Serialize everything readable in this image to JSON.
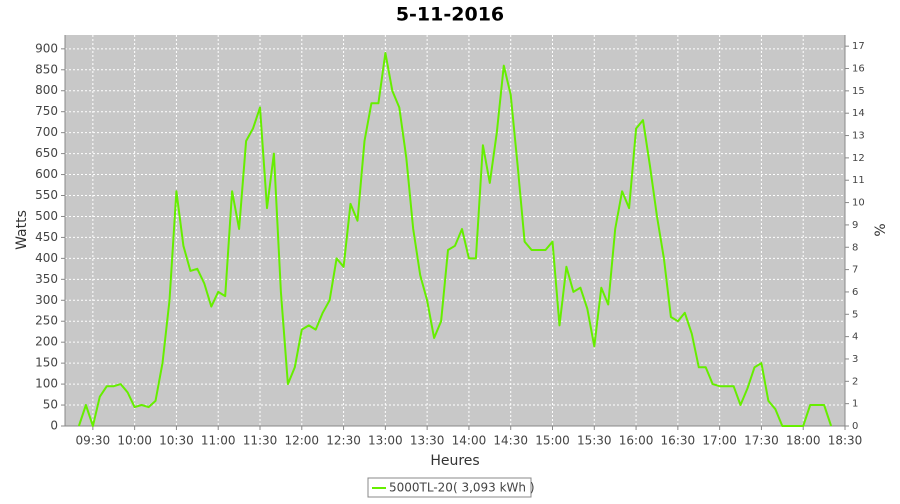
{
  "chart_data": {
    "type": "line",
    "title": "5-11-2016",
    "x_label": "Heures",
    "y_label": "Watts",
    "y2_label": "%",
    "xlim": [
      "09:10",
      "18:30"
    ],
    "xticks": [
      "09:30",
      "10:00",
      "10:30",
      "11:00",
      "11:30",
      "12:00",
      "12:30",
      "13:00",
      "13:30",
      "14:00",
      "14:30",
      "15:00",
      "15:30",
      "16:00",
      "16:30",
      "17:00",
      "17:30",
      "18:00",
      "18:30"
    ],
    "ylim": [
      0,
      933
    ],
    "yticks": [
      0,
      50,
      100,
      150,
      200,
      250,
      300,
      350,
      400,
      450,
      500,
      550,
      600,
      650,
      700,
      750,
      800,
      850,
      900
    ],
    "y2lim": [
      0,
      17.5
    ],
    "y2ticks": [
      0,
      1,
      2,
      3,
      4,
      5,
      6,
      7,
      8,
      9,
      10,
      11,
      12,
      13,
      14,
      15,
      16,
      17
    ],
    "grid": true,
    "legend": "bottom",
    "x": [
      "09:20",
      "09:25",
      "09:30",
      "09:35",
      "09:40",
      "09:45",
      "09:50",
      "09:55",
      "10:00",
      "10:05",
      "10:10",
      "10:15",
      "10:20",
      "10:25",
      "10:30",
      "10:35",
      "10:40",
      "10:45",
      "10:50",
      "10:55",
      "11:00",
      "11:05",
      "11:10",
      "11:15",
      "11:20",
      "11:25",
      "11:30",
      "11:35",
      "11:40",
      "11:45",
      "11:50",
      "11:55",
      "12:00",
      "12:05",
      "12:10",
      "12:15",
      "12:20",
      "12:25",
      "12:30",
      "12:35",
      "12:40",
      "12:45",
      "12:50",
      "12:55",
      "13:00",
      "13:05",
      "13:10",
      "13:15",
      "13:20",
      "13:25",
      "13:30",
      "13:35",
      "13:40",
      "13:45",
      "13:50",
      "13:55",
      "14:00",
      "14:05",
      "14:10",
      "14:15",
      "14:20",
      "14:25",
      "14:30",
      "14:35",
      "14:40",
      "14:45",
      "14:50",
      "14:55",
      "15:00",
      "15:05",
      "15:10",
      "15:15",
      "15:20",
      "15:25",
      "15:30",
      "15:35",
      "15:40",
      "15:45",
      "15:50",
      "15:55",
      "16:00",
      "16:05",
      "16:10",
      "16:15",
      "16:20",
      "16:25",
      "16:30",
      "16:35",
      "16:40",
      "16:45",
      "16:50",
      "16:55",
      "17:00",
      "17:05",
      "17:10",
      "17:15",
      "17:20",
      "17:25",
      "17:30",
      "17:35",
      "17:40",
      "17:45",
      "17:50",
      "17:55",
      "18:00",
      "18:05",
      "18:10",
      "18:15",
      "18:20"
    ],
    "series": [
      {
        "name": "5000TL-20( 3,093 kWh )",
        "color": "#66ee00",
        "values": [
          0,
          50,
          0,
          70,
          95,
          95,
          100,
          80,
          45,
          50,
          45,
          60,
          150,
          300,
          560,
          430,
          370,
          375,
          340,
          285,
          320,
          310,
          560,
          470,
          680,
          710,
          760,
          520,
          650,
          320,
          100,
          140,
          230,
          240,
          230,
          270,
          300,
          400,
          380,
          530,
          490,
          680,
          770,
          770,
          890,
          800,
          760,
          640,
          470,
          360,
          300,
          210,
          250,
          420,
          430,
          470,
          400,
          400,
          670,
          580,
          700,
          860,
          790,
          620,
          440,
          420,
          420,
          420,
          440,
          240,
          380,
          320,
          330,
          280,
          190,
          330,
          290,
          470,
          560,
          520,
          710,
          730,
          620,
          500,
          400,
          260,
          250,
          270,
          220,
          140,
          140,
          100,
          95,
          95,
          95,
          50,
          90,
          140,
          150,
          60,
          40,
          0,
          0,
          0,
          0,
          50,
          50,
          50,
          0
        ]
      }
    ]
  }
}
